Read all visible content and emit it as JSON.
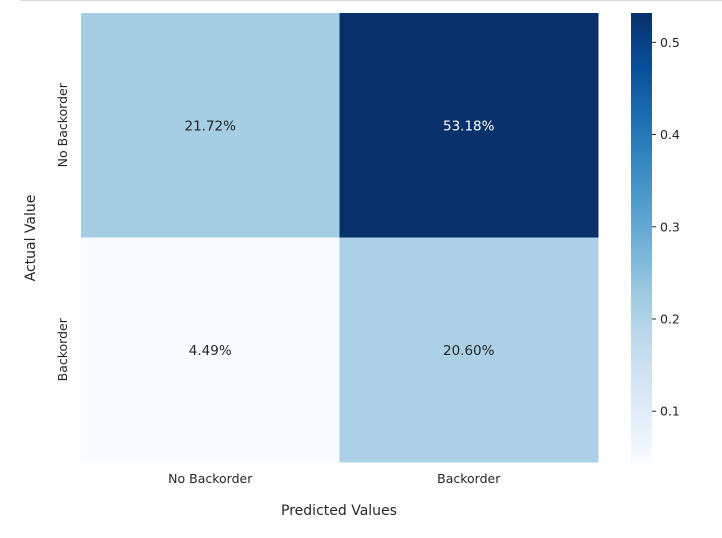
{
  "chart_data": {
    "type": "heatmap",
    "title": "",
    "xlabel": "Predicted Values",
    "ylabel": "Actual Value",
    "x_categories": [
      "No Backorder",
      "Backorder"
    ],
    "y_categories": [
      "No Backorder",
      "Backorder"
    ],
    "values": [
      [
        0.2172,
        0.5318
      ],
      [
        0.0449,
        0.206
      ]
    ],
    "annotations": [
      [
        "21.72%",
        "53.18%"
      ],
      [
        "4.49%",
        "20.60%"
      ]
    ],
    "colormap": "Blues",
    "colorbar": {
      "vmin": 0.0449,
      "vmax": 0.5318,
      "ticks": [
        0.1,
        0.2,
        0.3,
        0.4,
        0.5
      ],
      "tick_labels": [
        "0.1",
        "0.2",
        "0.3",
        "0.4",
        "0.5"
      ]
    },
    "grid": false
  }
}
